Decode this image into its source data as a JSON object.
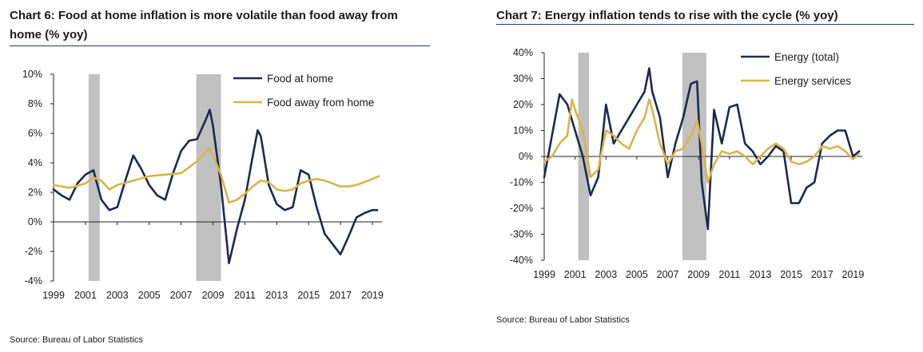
{
  "chart_data": [
    {
      "type": "line",
      "title": "Chart 6: Food at home inflation is more volatile than food away from home (% yoy)",
      "source": "Source: Bureau of Labor Statistics",
      "xlabel": "",
      "ylabel": "",
      "ylim": [
        -4,
        10
      ],
      "xlim": [
        1999.0,
        2019.6
      ],
      "y_ticks": [
        10,
        8,
        6,
        4,
        2,
        0,
        -2,
        -4
      ],
      "y_tick_labels": [
        "10%",
        "8%",
        "6%",
        "4%",
        "2%",
        "0%",
        "-2%",
        "-4%"
      ],
      "x_tick_labels": [
        "1999",
        "2001",
        "2003",
        "2005",
        "2007",
        "2009",
        "2011",
        "2013",
        "2015",
        "2017",
        "2019"
      ],
      "legend_position": "top-right",
      "recessions": [
        [
          2001.2,
          2001.9
        ],
        [
          2007.95,
          2009.5
        ]
      ],
      "colors": {
        "Food at home": "#1b2a4e",
        "Food away from home": "#d9b44a",
        "recession": "#c0c0c0"
      },
      "series": [
        {
          "name": "Food at home",
          "x": [
            1999.0,
            1999.5,
            2000.0,
            2000.5,
            2001.0,
            2001.5,
            2002.0,
            2002.5,
            2003.0,
            2003.5,
            2004.0,
            2004.5,
            2005.0,
            2005.5,
            2006.0,
            2006.5,
            2007.0,
            2007.5,
            2008.0,
            2008.5,
            2008.8,
            2009.0,
            2009.5,
            2010.0,
            2010.5,
            2011.0,
            2011.5,
            2011.8,
            2012.0,
            2012.5,
            2013.0,
            2013.5,
            2014.0,
            2014.5,
            2015.0,
            2015.5,
            2016.0,
            2016.5,
            2017.0,
            2017.5,
            2018.0,
            2018.5,
            2019.0,
            2019.3
          ],
          "y": [
            2.2,
            1.8,
            1.5,
            2.6,
            3.2,
            3.5,
            1.5,
            0.8,
            1.0,
            2.8,
            4.5,
            3.6,
            2.5,
            1.8,
            1.5,
            3.3,
            4.8,
            5.5,
            5.6,
            6.8,
            7.6,
            6.5,
            2.5,
            -2.8,
            -0.5,
            1.5,
            4.5,
            6.2,
            5.8,
            2.5,
            1.2,
            0.8,
            1.0,
            3.5,
            3.2,
            1.0,
            -0.8,
            -1.5,
            -2.2,
            -1.0,
            0.3,
            0.6,
            0.8,
            0.8
          ]
        },
        {
          "name": "Food away from home",
          "x": [
            1999.0,
            2000.0,
            2001.0,
            2001.5,
            2002.0,
            2002.5,
            2003.0,
            2004.0,
            2005.0,
            2006.0,
            2007.0,
            2008.0,
            2008.8,
            2009.5,
            2010.0,
            2010.5,
            2011.0,
            2011.5,
            2012.0,
            2012.5,
            2013.0,
            2013.5,
            2014.0,
            2014.5,
            2015.0,
            2015.5,
            2016.0,
            2016.5,
            2017.0,
            2017.5,
            2018.0,
            2018.5,
            2019.0,
            2019.4
          ],
          "y": [
            2.5,
            2.3,
            2.6,
            3.0,
            2.8,
            2.2,
            2.5,
            2.8,
            3.1,
            3.2,
            3.3,
            4.1,
            5.0,
            3.2,
            1.3,
            1.5,
            1.9,
            2.4,
            2.8,
            2.7,
            2.2,
            2.1,
            2.2,
            2.6,
            2.8,
            2.9,
            2.8,
            2.6,
            2.4,
            2.4,
            2.5,
            2.7,
            2.9,
            3.1
          ]
        }
      ]
    },
    {
      "type": "line",
      "title": "Chart 7: Energy inflation tends to rise with the cycle (% yoy)",
      "source": "Source: Bureau of Labor Statistics",
      "xlabel": "",
      "ylabel": "",
      "ylim": [
        -40,
        40
      ],
      "xlim": [
        1999.0,
        2019.6
      ],
      "y_ticks": [
        40,
        30,
        20,
        10,
        0,
        -10,
        -20,
        -30,
        -40
      ],
      "y_tick_labels": [
        "40%",
        "30%",
        "20%",
        "10%",
        "0%",
        "-10%",
        "-20%",
        "-30%",
        "-40%"
      ],
      "x_tick_labels": [
        "1999",
        "2001",
        "2003",
        "2005",
        "2007",
        "2009",
        "2011",
        "2013",
        "2015",
        "2017",
        "2019"
      ],
      "legend_position": "top-right",
      "recessions": [
        [
          2001.2,
          2001.9
        ],
        [
          2007.95,
          2009.5
        ]
      ],
      "colors": {
        "Energy (total)": "#1b2a4e",
        "Energy services": "#d9b44a",
        "recession": "#c0c0c0"
      },
      "series": [
        {
          "name": "Energy (total)",
          "x": [
            1999.0,
            1999.5,
            2000.0,
            2000.5,
            2001.0,
            2001.5,
            2002.0,
            2002.5,
            2003.0,
            2003.5,
            2004.0,
            2004.5,
            2005.0,
            2005.5,
            2005.8,
            2006.0,
            2006.5,
            2007.0,
            2007.5,
            2008.0,
            2008.5,
            2008.9,
            2009.2,
            2009.6,
            2010.0,
            2010.5,
            2011.0,
            2011.5,
            2012.0,
            2012.5,
            2013.0,
            2013.5,
            2014.0,
            2014.5,
            2015.0,
            2015.5,
            2016.0,
            2016.5,
            2017.0,
            2017.5,
            2018.0,
            2018.5,
            2019.0,
            2019.4
          ],
          "y": [
            -8,
            8,
            24,
            20,
            10,
            0,
            -15,
            -8,
            20,
            5,
            10,
            15,
            20,
            25,
            34,
            25,
            15,
            -8,
            5,
            15,
            28,
            29,
            -10,
            -28,
            18,
            5,
            19,
            20,
            5,
            2,
            -3,
            0,
            4,
            2,
            -18,
            -18,
            -12,
            -10,
            5,
            8,
            10,
            10,
            0,
            2
          ]
        },
        {
          "name": "Energy services",
          "x": [
            1999.0,
            1999.5,
            2000.0,
            2000.5,
            2000.8,
            2001.0,
            2001.5,
            2002.0,
            2002.5,
            2003.0,
            2003.5,
            2004.0,
            2004.5,
            2005.0,
            2005.5,
            2005.8,
            2006.0,
            2006.5,
            2007.0,
            2007.5,
            2008.0,
            2008.5,
            2008.9,
            2009.2,
            2009.6,
            2010.0,
            2010.5,
            2011.0,
            2011.5,
            2012.0,
            2012.5,
            2013.0,
            2013.5,
            2014.0,
            2014.5,
            2015.0,
            2015.5,
            2016.0,
            2016.5,
            2017.0,
            2017.5,
            2018.0,
            2018.5,
            2019.0,
            2019.4
          ],
          "y": [
            -2,
            0,
            5,
            8,
            22,
            18,
            10,
            -8,
            -5,
            10,
            8,
            5,
            3,
            10,
            15,
            22,
            18,
            5,
            -3,
            2,
            3,
            8,
            14,
            5,
            -10,
            -3,
            2,
            1,
            2,
            0,
            -3,
            0,
            3,
            5,
            3,
            -2,
            -3,
            -2,
            0,
            4,
            3,
            4,
            2,
            -1,
            1
          ]
        }
      ]
    }
  ]
}
